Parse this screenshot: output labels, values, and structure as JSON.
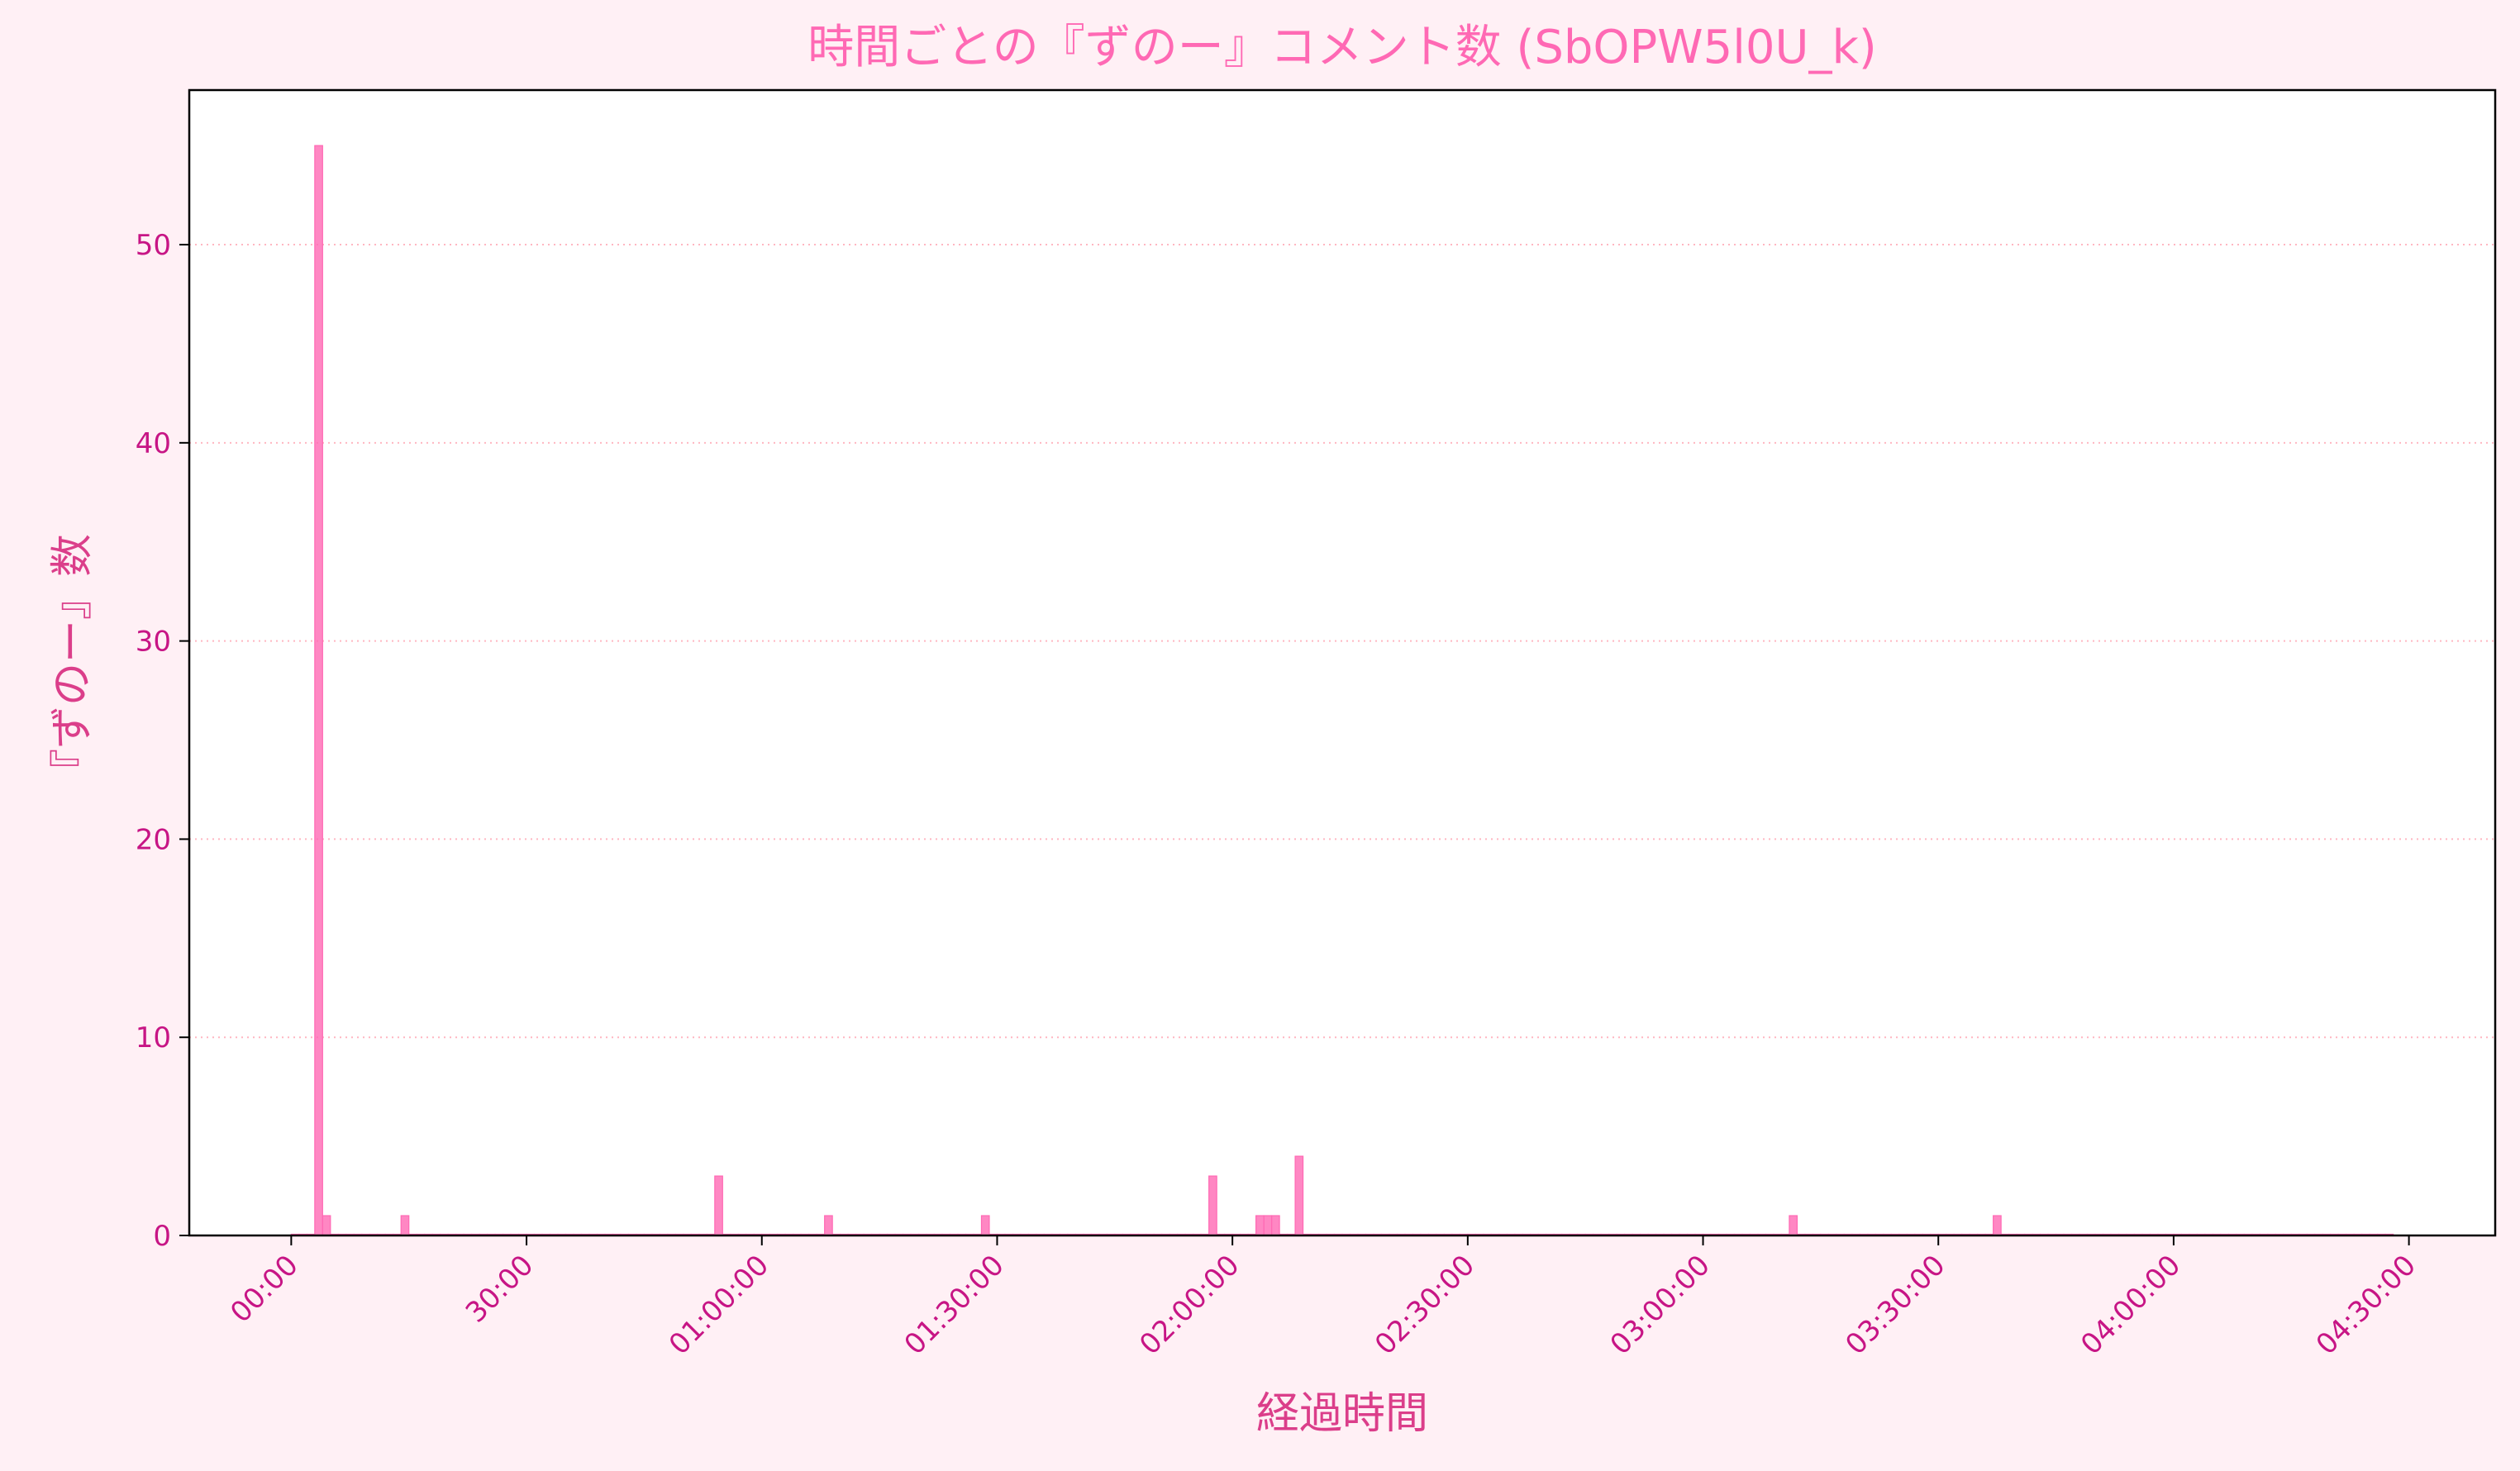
{
  "chart_data": {
    "type": "bar",
    "title": "時間ごとの『ずのー』コメント数 (SbOPW5l0U_k)",
    "xlabel": "経過時間",
    "ylabel": "『ずのー』数",
    "x_unit": "minutes",
    "bin_minutes": 1,
    "xlim": [
      -13,
      281
    ],
    "ylim": [
      0,
      57.8
    ],
    "yticks": [
      0,
      10,
      20,
      30,
      40,
      50
    ],
    "xticks": [
      {
        "value": 0,
        "label": "00:00"
      },
      {
        "value": 30,
        "label": "30:00"
      },
      {
        "value": 60,
        "label": "01:00:00"
      },
      {
        "value": 90,
        "label": "01:30:00"
      },
      {
        "value": 120,
        "label": "02:00:00"
      },
      {
        "value": 150,
        "label": "02:30:00"
      },
      {
        "value": 180,
        "label": "03:00:00"
      },
      {
        "value": 210,
        "label": "03:30:00"
      },
      {
        "value": 240,
        "label": "04:00:00"
      },
      {
        "value": 270,
        "label": "04:30:00"
      }
    ],
    "x_range": [
      0,
      267
    ],
    "points": [
      {
        "x": 3,
        "y": 55
      },
      {
        "x": 4,
        "y": 1
      },
      {
        "x": 14,
        "y": 1
      },
      {
        "x": 54,
        "y": 3
      },
      {
        "x": 68,
        "y": 1
      },
      {
        "x": 88,
        "y": 1
      },
      {
        "x": 117,
        "y": 3
      },
      {
        "x": 123,
        "y": 1
      },
      {
        "x": 124,
        "y": 1
      },
      {
        "x": 125,
        "y": 1
      },
      {
        "x": 128,
        "y": 4
      },
      {
        "x": 191,
        "y": 1
      },
      {
        "x": 217,
        "y": 1
      }
    ],
    "grid": "y-dotted",
    "colors": {
      "bar": "#ff69b4",
      "title": "#ff69b4",
      "axis_label": "#db3e8a",
      "tick_label": "#c71585",
      "grid": "#ffb6c1",
      "background": "#fff0f5",
      "plot_background": "#ffffff"
    }
  }
}
